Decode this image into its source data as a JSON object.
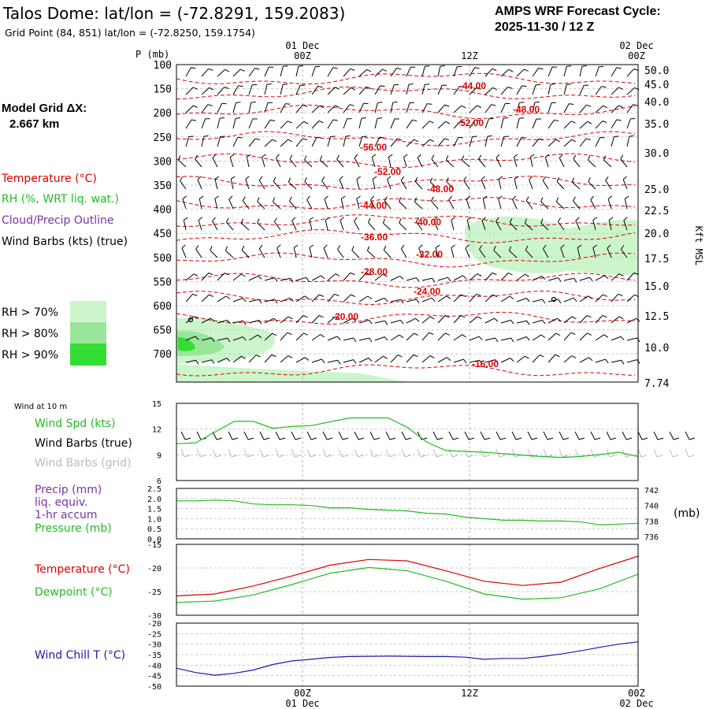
{
  "header": {
    "title": "Talos Dome:  lat/lon = (-72.8291, 159.2083)",
    "grid_point": "Grid Point (84, 851) lat/lon = (-72.8250, 159.1754)",
    "cycle_line1": "AMPS WRF Forecast Cycle:",
    "cycle_line2": "2025-11-30 / 12  Z",
    "model_grid_line1": "Model Grid ΔX:",
    "model_grid_line2": "2.667 km"
  },
  "time_axis": {
    "top_date_label": "01 Dec",
    "top_right_date": "02 Dec",
    "bottom_date_label": "01 Dec",
    "bottom_right_date": "02 Dec",
    "ticks": [
      "00Z",
      "12Z",
      "00Z"
    ]
  },
  "legend": {
    "temperature": "Temperature (°C)",
    "rh": "RH (%, WRT liq. wat.)",
    "cloud": "Cloud/Precip Outline",
    "wind_barbs": "Wind Barbs (kts) (true)",
    "rh70": "RH > 70%",
    "rh80": "RH > 80%",
    "rh90": "RH > 90%",
    "colors": {
      "temp": "#dd0000",
      "rh": "#22bb22",
      "cloud": "#7a33a8",
      "rh70": "#ccf5cc",
      "rh80": "#99e699",
      "rh90": "#33dd33"
    }
  },
  "chart_data": [
    {
      "type": "contour",
      "name": "upper-air cross section",
      "ylabel_left": "P (mb)",
      "ylabel_right": "Kft MSL",
      "pressure_levels": [
        100,
        150,
        200,
        250,
        300,
        350,
        400,
        450,
        500,
        550,
        600,
        650,
        700
      ],
      "height_labels": [
        "50.0",
        "45.0",
        "40.0",
        "35.0",
        "30.0",
        "25.0",
        "22.5",
        "20.0",
        "17.5",
        "15.0",
        "12.5",
        "10.0",
        "7.74"
      ],
      "temperature_contour_labels": [
        "-44.00",
        "-48.00",
        "-52.00",
        "-56.00",
        "-52.00",
        "-48.00",
        "-44.00",
        "-40.00",
        "-36.00",
        "-32.00",
        "-28.00",
        "-24.00",
        "-20.00",
        "-16.00"
      ]
    },
    {
      "type": "line",
      "name": "10 m wind",
      "section_label": "Wind at 10 m",
      "legend": [
        "Wind Spd (kts)",
        "Wind Barbs (true)",
        "Wind Barbs (grid)"
      ],
      "yticks": [
        "15",
        "12",
        "9",
        "6"
      ],
      "ylim": [
        6,
        15
      ],
      "series": [
        {
          "name": "Wind Spd (kts)",
          "color": "#22bb22",
          "x": [
            0,
            1,
            3,
            4,
            5,
            6,
            7,
            9,
            11,
            12,
            13,
            14,
            16,
            19,
            20,
            21,
            23,
            24
          ],
          "values": [
            10.3,
            10.4,
            12.9,
            12.9,
            12.1,
            12.3,
            12.4,
            13.3,
            13.3,
            12.2,
            10.5,
            9.5,
            9.3,
            8.8,
            8.7,
            8.8,
            9.3,
            8.8
          ]
        }
      ]
    },
    {
      "type": "line",
      "name": "precip and pressure",
      "legend": [
        "Precip (mm)",
        "liq. equiv.",
        "1-hr accum",
        "Pressure (mb)"
      ],
      "yticks_left": [
        "2.5",
        "2.0",
        "1.5",
        "1.0",
        "0.5",
        "0.0"
      ],
      "yticks_right": [
        "742",
        "740",
        "738",
        "736"
      ],
      "right_unit": "(mb)",
      "ylim_left": [
        0,
        2.5
      ],
      "ylim_right": [
        735.7,
        742.2
      ],
      "series": [
        {
          "name": "Pressure (mb)",
          "color": "#22bb22",
          "x": [
            0,
            1,
            2,
            3,
            4,
            5,
            6,
            7,
            8,
            9,
            10,
            11,
            12,
            13,
            14,
            15,
            16,
            17,
            18,
            19,
            20,
            21,
            22,
            23,
            24
          ],
          "values": [
            740.6,
            740.6,
            740.7,
            740.6,
            740.2,
            740.1,
            740.1,
            740.0,
            739.7,
            739.7,
            739.5,
            739.4,
            739.3,
            739.0,
            738.9,
            738.5,
            738.3,
            738.1,
            738.1,
            738.0,
            738.0,
            737.9,
            737.5,
            737.6,
            737.7
          ]
        }
      ]
    },
    {
      "type": "line",
      "name": "temperature and dewpoint",
      "legend": [
        "Temperature (°C)",
        "Dewpoint (°C)"
      ],
      "yticks": [
        "-15",
        "-20",
        "-25",
        "-30"
      ],
      "ylim": [
        -30,
        -15
      ],
      "series": [
        {
          "name": "Temperature (°C)",
          "color": "#dd0000",
          "x": [
            0,
            2,
            4,
            6,
            8,
            10,
            12,
            14,
            16,
            18,
            20,
            22,
            24
          ],
          "values": [
            -25.9,
            -25.5,
            -23.8,
            -21.7,
            -19.4,
            -18.2,
            -18.5,
            -20.6,
            -22.8,
            -23.7,
            -23.0,
            -20.1,
            -17.5
          ]
        },
        {
          "name": "Dewpoint (°C)",
          "color": "#22bb22",
          "x": [
            0,
            2,
            4,
            6,
            8,
            10,
            12,
            14,
            16,
            18,
            20,
            22,
            24
          ],
          "values": [
            -27.3,
            -27.0,
            -25.7,
            -23.5,
            -21.1,
            -19.9,
            -20.6,
            -22.8,
            -25.5,
            -26.6,
            -26.3,
            -24.4,
            -21.3
          ]
        }
      ]
    },
    {
      "type": "line",
      "name": "wind chill",
      "legend": [
        "Wind Chill T (°C)"
      ],
      "yticks": [
        "-20",
        "-25",
        "-30",
        "-35",
        "-40",
        "-45",
        "-50"
      ],
      "ylim": [
        -50,
        -20
      ],
      "series": [
        {
          "name": "Wind Chill T (°C)",
          "color": "#1a1aaa",
          "x": [
            0,
            1,
            2,
            3,
            4,
            5,
            6,
            7,
            8,
            9,
            10,
            11,
            12,
            13,
            14,
            15,
            16,
            17,
            18,
            19,
            20,
            21,
            22,
            23,
            24
          ],
          "values": [
            -41.5,
            -43.5,
            -44.8,
            -43.9,
            -42.3,
            -39.7,
            -38.0,
            -37.2,
            -36.3,
            -35.9,
            -35.8,
            -35.7,
            -35.8,
            -35.9,
            -35.9,
            -36.2,
            -37.2,
            -36.8,
            -36.8,
            -35.9,
            -34.7,
            -33.2,
            -31.5,
            -30.0,
            -28.9
          ]
        }
      ]
    }
  ]
}
